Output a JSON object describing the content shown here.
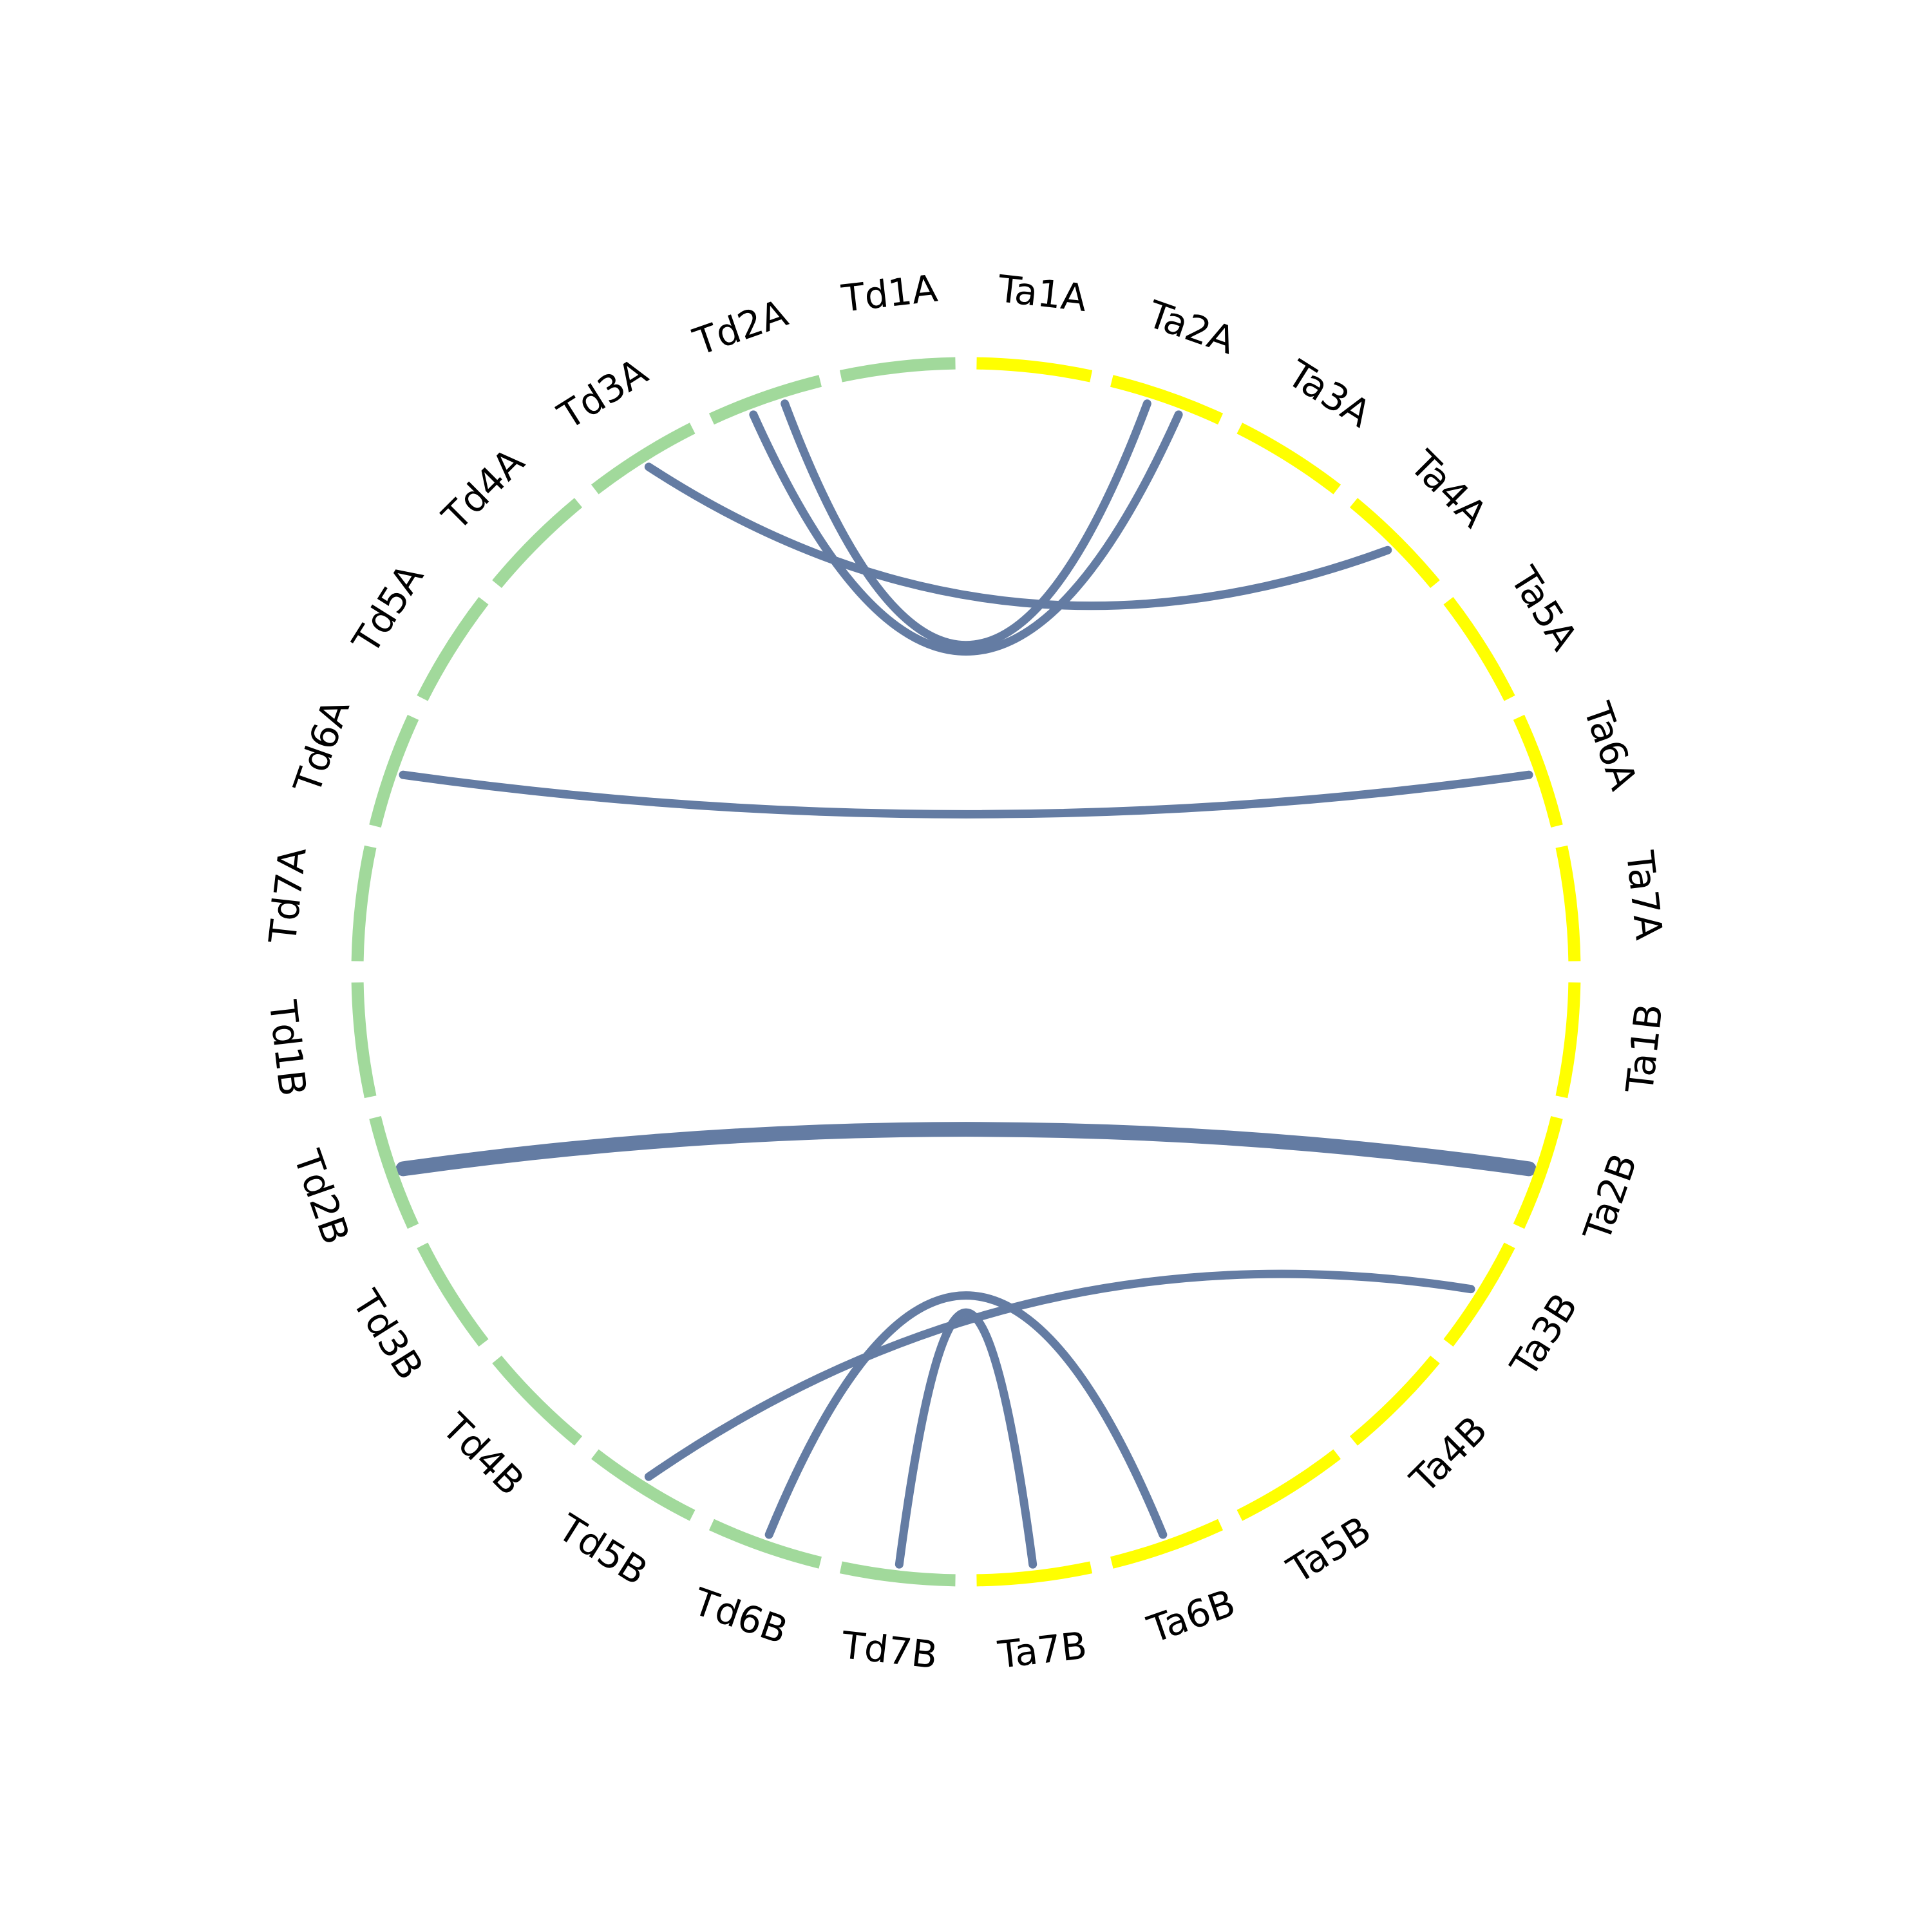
{
  "colors": {
    "background": "#ffffff",
    "left_group": "#a1d99b",
    "right_group": "#ffff00",
    "link": "#647ca3",
    "label": "#000000"
  },
  "chart_data": {
    "type": "chord",
    "segments": [
      {
        "name": "Ta1A",
        "group": "right_group"
      },
      {
        "name": "Ta2A",
        "group": "right_group"
      },
      {
        "name": "Ta3A",
        "group": "right_group"
      },
      {
        "name": "Ta4A",
        "group": "right_group"
      },
      {
        "name": "Ta5A",
        "group": "right_group"
      },
      {
        "name": "Ta6A",
        "group": "right_group"
      },
      {
        "name": "Ta7A",
        "group": "right_group"
      },
      {
        "name": "Ta1B",
        "group": "right_group"
      },
      {
        "name": "Ta2B",
        "group": "right_group"
      },
      {
        "name": "Ta3B",
        "group": "right_group"
      },
      {
        "name": "Ta4B",
        "group": "right_group"
      },
      {
        "name": "Ta5B",
        "group": "right_group"
      },
      {
        "name": "Ta6B",
        "group": "right_group"
      },
      {
        "name": "Ta7B",
        "group": "right_group"
      },
      {
        "name": "Td7B",
        "group": "left_group"
      },
      {
        "name": "Td6B",
        "group": "left_group"
      },
      {
        "name": "Td5B",
        "group": "left_group"
      },
      {
        "name": "Td4B",
        "group": "left_group"
      },
      {
        "name": "Td3B",
        "group": "left_group"
      },
      {
        "name": "Td2B",
        "group": "left_group"
      },
      {
        "name": "Td1B",
        "group": "left_group"
      },
      {
        "name": "Td7A",
        "group": "left_group"
      },
      {
        "name": "Td6A",
        "group": "left_group"
      },
      {
        "name": "Td5A",
        "group": "left_group"
      },
      {
        "name": "Td4A",
        "group": "left_group"
      },
      {
        "name": "Td3A",
        "group": "left_group"
      },
      {
        "name": "Td2A",
        "group": "left_group"
      },
      {
        "name": "Td1A",
        "group": "left_group"
      }
    ],
    "links": [
      {
        "source": "Td2A",
        "target": "Ta2A",
        "count": 1
      },
      {
        "source": "Td2A",
        "target": "Ta2A",
        "count": 1
      },
      {
        "source": "Td3A",
        "target": "Ta4A",
        "count": 1
      },
      {
        "source": "Td6A",
        "target": "Ta6A",
        "count": 1
      },
      {
        "source": "Td2B",
        "target": "Ta2B",
        "count": 3
      },
      {
        "source": "Td5B",
        "target": "Ta3B",
        "count": 1
      },
      {
        "source": "Td6B",
        "target": "Ta6B",
        "count": 1
      },
      {
        "source": "Td7B",
        "target": "Ta7B",
        "count": 1
      }
    ]
  }
}
